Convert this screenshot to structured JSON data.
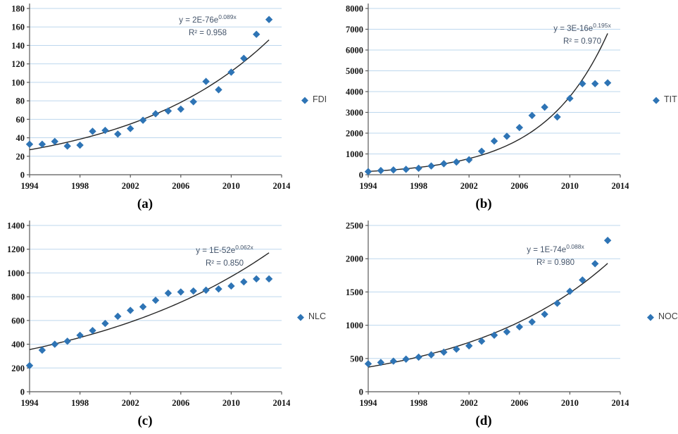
{
  "figure": {
    "style": {
      "marker_color": "#2E74B5",
      "trend_color": "#262626",
      "gridline_color": "#BDD7EE",
      "axis_color": "#595959",
      "equation_color": "#44546A"
    }
  },
  "chart_data": [
    {
      "type": "scatter",
      "panel_label": "(a)",
      "series_name": "FDI",
      "x": [
        1994,
        1995,
        1996,
        1997,
        1998,
        1999,
        2000,
        2001,
        2002,
        2003,
        2004,
        2005,
        2006,
        2007,
        2008,
        2009,
        2010,
        2011,
        2012,
        2013
      ],
      "values": [
        33,
        33,
        36,
        31,
        32,
        47,
        48,
        44,
        50,
        59,
        66,
        69,
        71,
        79,
        101,
        92,
        111,
        126,
        152,
        168
      ],
      "xlim": [
        1994,
        2014
      ],
      "x_tick_step": 4,
      "ylim": [
        0,
        180
      ],
      "y_tick_step": 20,
      "grid": "horizontal",
      "legend_position": "right",
      "trendline": {
        "type": "exponential",
        "equation": "y = 2E-76e^(0.089x)",
        "equation_base": "y = 2E-76e",
        "equation_exponent": "0.089x",
        "r_squared_label": "R² = 0.958",
        "start": {
          "x": 1994,
          "y": 27
        },
        "end": {
          "x": 2013,
          "y": 146
        }
      }
    },
    {
      "type": "scatter",
      "panel_label": "(b)",
      "series_name": "TIT",
      "x": [
        1994,
        1995,
        1996,
        1997,
        1998,
        1999,
        2000,
        2001,
        2002,
        2003,
        2004,
        2005,
        2006,
        2007,
        2008,
        2009,
        2010,
        2011,
        2012,
        2013
      ],
      "values": [
        150,
        200,
        230,
        260,
        310,
        420,
        530,
        610,
        720,
        1130,
        1620,
        1850,
        2270,
        2850,
        3250,
        2780,
        3670,
        4380,
        4380,
        4420
      ],
      "xlim": [
        1994,
        2014
      ],
      "x_tick_step": 4,
      "ylim": [
        0,
        8000
      ],
      "y_tick_step": 1000,
      "grid": "horizontal",
      "legend_position": "right",
      "trendline": {
        "type": "exponential",
        "equation": "y = 3E-16e^(0.195x)",
        "equation_base": "y = 3E-16e",
        "equation_exponent": "0.195x",
        "r_squared_label": "R² = 0.970",
        "start": {
          "x": 1994,
          "y": 160
        },
        "end": {
          "x": 2013,
          "y": 6800
        }
      }
    },
    {
      "type": "scatter",
      "panel_label": "(c)",
      "series_name": "NLC",
      "x": [
        1994,
        1995,
        1996,
        1997,
        1998,
        1999,
        2000,
        2001,
        2002,
        2003,
        2004,
        2005,
        2006,
        2007,
        2008,
        2009,
        2010,
        2011,
        2012,
        2013
      ],
      "values": [
        220,
        350,
        400,
        425,
        475,
        515,
        575,
        635,
        685,
        715,
        770,
        830,
        840,
        848,
        855,
        865,
        890,
        925,
        950,
        950
      ],
      "xlim": [
        1994,
        2014
      ],
      "x_tick_step": 4,
      "ylim": [
        0,
        1400
      ],
      "y_tick_step": 200,
      "grid": "horizontal",
      "legend_position": "right",
      "trendline": {
        "type": "exponential",
        "equation": "y = 1E-52e^(0.062x)",
        "equation_base": "y = 1E-52e",
        "equation_exponent": "0.062x",
        "r_squared_label": "R² = 0.850",
        "start": {
          "x": 1994,
          "y": 355
        },
        "end": {
          "x": 2013,
          "y": 1170
        }
      }
    },
    {
      "type": "scatter",
      "panel_label": "(d)",
      "series_name": "NOC",
      "x": [
        1994,
        1995,
        1996,
        1997,
        1998,
        1999,
        2000,
        2001,
        2002,
        2003,
        2004,
        2005,
        2006,
        2007,
        2008,
        2009,
        2010,
        2011,
        2012,
        2013
      ],
      "values": [
        420,
        440,
        460,
        490,
        520,
        555,
        595,
        640,
        690,
        760,
        850,
        900,
        975,
        1050,
        1165,
        1330,
        1510,
        1680,
        1925,
        2275
      ],
      "xlim": [
        1994,
        2014
      ],
      "x_tick_step": 4,
      "ylim": [
        0,
        2500
      ],
      "y_tick_step": 500,
      "grid": "horizontal",
      "legend_position": "right",
      "trendline": {
        "type": "exponential",
        "equation": "y = 1E-74e^(0.088x)",
        "equation_base": "y = 1E-74e",
        "equation_exponent": "0.088x",
        "r_squared_label": "R² = 0.980",
        "start": {
          "x": 1994,
          "y": 370
        },
        "end": {
          "x": 2013,
          "y": 1930
        }
      }
    }
  ]
}
